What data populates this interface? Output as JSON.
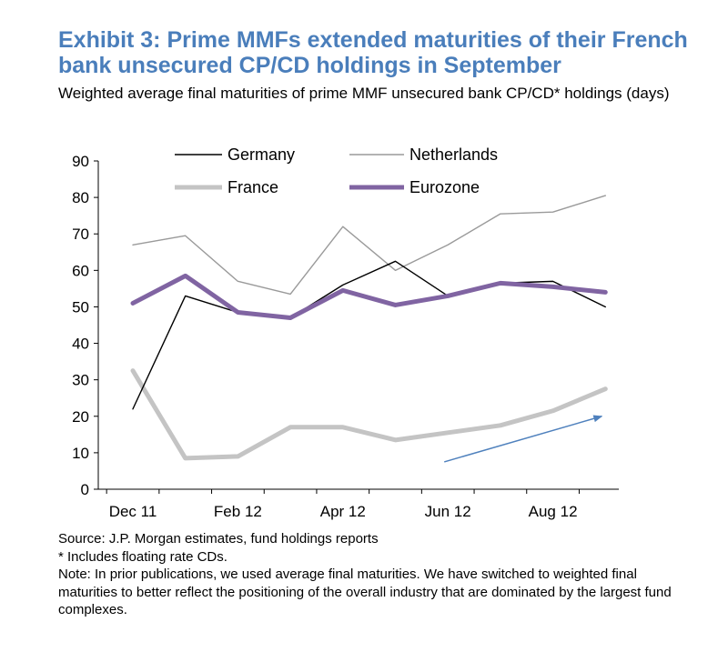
{
  "title": "Exhibit 3: Prime MMFs extended maturities of their French bank unsecured CP/CD holdings in September",
  "subtitle": "Weighted average final maturities of prime MMF unsecured bank CP/CD* holdings (days)",
  "colors": {
    "title": "#4a7ebb",
    "germany": "#000000",
    "netherlands": "#9a9a9a",
    "france": "#c4c4c4",
    "eurozone": "#8064a2",
    "arrow": "#4f81bd"
  },
  "chart_data": {
    "type": "line",
    "x": [
      "Dec 11",
      "Jan 12",
      "Feb 12",
      "Mar 12",
      "Apr 12",
      "May 12",
      "Jun 12",
      "Jul 12",
      "Aug 12",
      "Sep 12"
    ],
    "x_tick_labels": [
      "Dec 11",
      "Feb 12",
      "Apr 12",
      "Jun 12",
      "Aug 12"
    ],
    "y_ticks": [
      0,
      10,
      20,
      30,
      40,
      50,
      60,
      70,
      80,
      90
    ],
    "ylim": [
      0,
      90
    ],
    "grid": false,
    "legend_position": "top",
    "series": [
      {
        "name": "Germany",
        "values": [
          22,
          53,
          48.5,
          47,
          56,
          62.5,
          53,
          56.5,
          57,
          50
        ]
      },
      {
        "name": "Netherlands",
        "values": [
          67,
          69.5,
          57,
          53.5,
          72,
          60,
          67,
          75.5,
          76,
          80.5
        ]
      },
      {
        "name": "France",
        "values": [
          32.5,
          8.5,
          9,
          17,
          17,
          13.5,
          15.5,
          17.5,
          21.5,
          27.5
        ]
      },
      {
        "name": "Eurozone",
        "values": [
          51,
          58.5,
          48.5,
          47,
          54.5,
          50.5,
          53,
          56.5,
          55.5,
          54
        ]
      }
    ],
    "annotations": [
      {
        "type": "arrow",
        "from": {
          "x": "Jun 12",
          "y": 7.5
        },
        "to": {
          "x": "Sep 12",
          "y": 20
        }
      }
    ]
  },
  "notes": {
    "source": "Source: J.P. Morgan estimates, fund holdings reports",
    "footnote": "* Includes floating rate CDs.",
    "note": "Note: In prior publications, we used average final maturities.  We have switched to weighted final maturities to better reflect the positioning of the overall industry that are dominated by the largest fund complexes."
  }
}
